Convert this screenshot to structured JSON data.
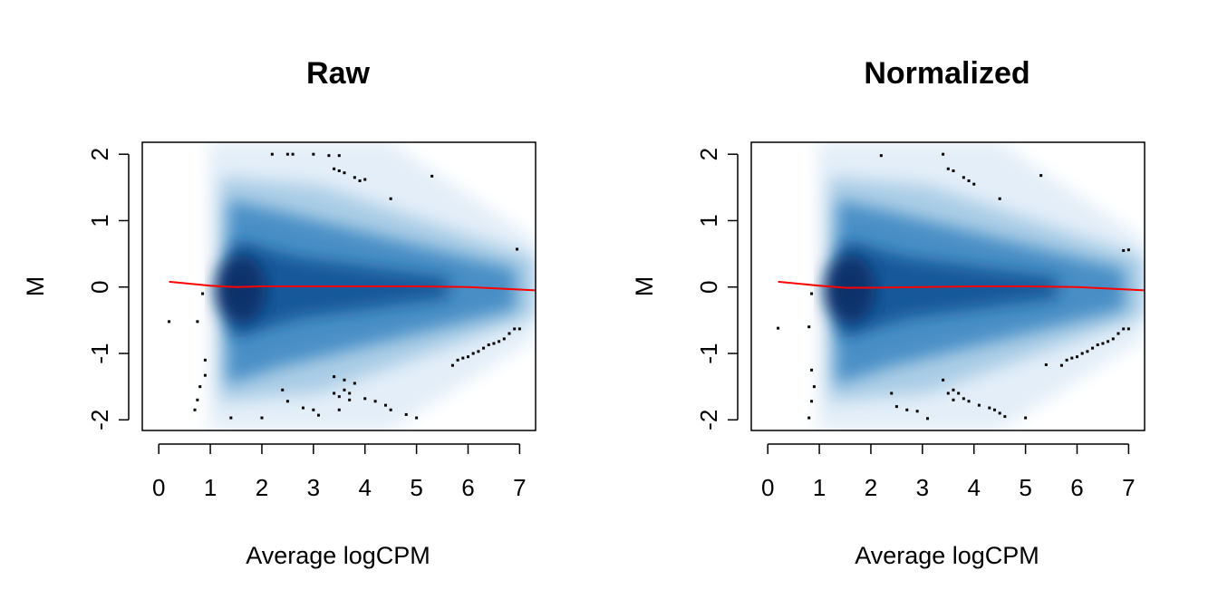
{
  "chart_data": [
    {
      "type": "scatter",
      "title": "Raw",
      "xlabel": "Average logCPM",
      "ylabel": "M",
      "xlim": [
        -0.32,
        7.31
      ],
      "ylim": [
        -2.16,
        2.18
      ],
      "xticks": [
        0,
        1,
        2,
        3,
        4,
        5,
        6,
        7
      ],
      "yticks": [
        -2,
        -1,
        0,
        1,
        2
      ],
      "points": {
        "color": "#000000",
        "x": [
          2.2,
          2.5,
          2.6,
          3,
          3.3,
          3.5,
          3.4,
          3.5,
          3.6,
          3.8,
          3.9,
          4,
          4.5,
          5.3,
          6.95,
          0.2,
          0.75,
          0.85,
          0.9,
          0.9,
          0.8,
          0.75,
          0.7,
          1.4,
          2,
          2.4,
          2.5,
          2.8,
          3,
          3.1,
          3.4,
          3.4,
          3.5,
          3.6,
          3.6,
          3.7,
          3.7,
          3.8,
          3.5,
          4,
          4.2,
          4.4,
          4.5,
          4.8,
          5,
          5.7,
          5.8,
          5.9,
          6,
          6.1,
          6.2,
          6.3,
          6.4,
          6.5,
          6.6,
          6.7,
          6.8,
          6.9,
          7
        ],
        "y": [
          2,
          2,
          2,
          2,
          1.98,
          1.98,
          1.78,
          1.75,
          1.72,
          1.65,
          1.6,
          1.62,
          1.33,
          1.67,
          0.57,
          -0.52,
          -0.52,
          -0.1,
          -1.1,
          -1.33,
          -1.5,
          -1.7,
          -1.85,
          -1.97,
          -1.97,
          -1.55,
          -1.72,
          -1.82,
          -1.85,
          -1.93,
          -1.35,
          -1.6,
          -1.65,
          -1.4,
          -1.55,
          -1.6,
          -1.7,
          -1.45,
          -1.85,
          -1.68,
          -1.72,
          -1.78,
          -1.85,
          -1.92,
          -1.97,
          -1.18,
          -1.1,
          -1.07,
          -1.05,
          -1.0,
          -0.97,
          -0.92,
          -0.87,
          -0.85,
          -0.82,
          -0.78,
          -0.7,
          -0.63,
          -0.63
        ]
      },
      "line": {
        "color": "#ff0000",
        "x": [
          0.2,
          1.0,
          1.5,
          2,
          3,
          4,
          5,
          6,
          7.31
        ],
        "y": [
          0.08,
          0.02,
          0,
          0.01,
          0.01,
          0.01,
          0.01,
          0,
          -0.05
        ]
      }
    },
    {
      "type": "scatter",
      "title": "Normalized",
      "xlabel": "Average logCPM",
      "ylabel": "M",
      "xlim": [
        -0.32,
        7.31
      ],
      "ylim": [
        -2.16,
        2.18
      ],
      "xticks": [
        0,
        1,
        2,
        3,
        4,
        5,
        6,
        7
      ],
      "yticks": [
        -2,
        -1,
        0,
        1,
        2
      ],
      "points": {
        "color": "#000000",
        "x": [
          2.2,
          3.4,
          3.5,
          3.6,
          3.8,
          3.9,
          4,
          4.5,
          5.3,
          6.9,
          7,
          0.2,
          0.8,
          0.85,
          0.85,
          0.9,
          0.85,
          0.8,
          2.4,
          2.5,
          2.7,
          2.9,
          3.1,
          3.4,
          3.5,
          3.6,
          3.6,
          3.7,
          3.8,
          3.9,
          4.1,
          4.3,
          4.4,
          4.5,
          4.6,
          5,
          5.4,
          5.7,
          5.8,
          5.9,
          6,
          6.1,
          6.2,
          6.3,
          6.4,
          6.5,
          6.6,
          6.7,
          6.8,
          6.9,
          7
        ],
        "y": [
          1.98,
          2,
          1.78,
          1.75,
          1.65,
          1.6,
          1.55,
          1.33,
          1.68,
          0.55,
          0.56,
          -0.62,
          -0.6,
          -0.1,
          -1.25,
          -1.5,
          -1.72,
          -1.97,
          -1.6,
          -1.8,
          -1.85,
          -1.87,
          -1.98,
          -1.4,
          -1.6,
          -1.55,
          -1.7,
          -1.6,
          -1.68,
          -1.72,
          -1.78,
          -1.82,
          -1.85,
          -1.9,
          -1.95,
          -1.97,
          -1.17,
          -1.18,
          -1.1,
          -1.07,
          -1.05,
          -1.0,
          -0.97,
          -0.92,
          -0.87,
          -0.85,
          -0.82,
          -0.78,
          -0.7,
          -0.63,
          -0.63
        ]
      },
      "line": {
        "color": "#ff0000",
        "x": [
          0.2,
          1.0,
          1.5,
          2,
          3,
          4,
          5,
          6,
          7.31
        ],
        "y": [
          0.08,
          0.02,
          -0.01,
          -0.01,
          0,
          0.01,
          0.01,
          0,
          -0.05
        ]
      }
    }
  ]
}
